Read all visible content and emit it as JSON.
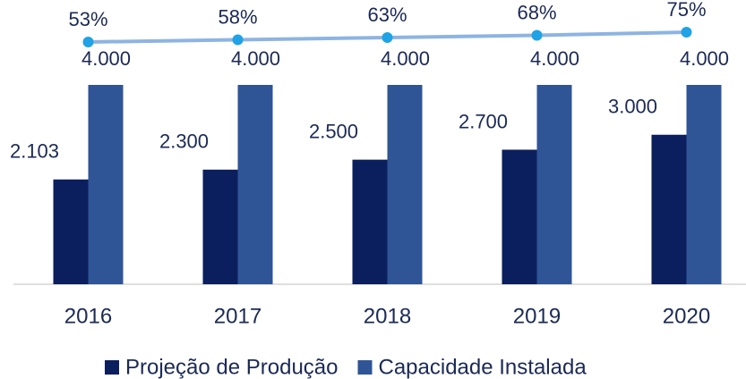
{
  "chart_data": {
    "type": "bar",
    "categories": [
      "2016",
      "2017",
      "2018",
      "2019",
      "2020"
    ],
    "series": [
      {
        "name": "Projeção de Produção",
        "color": "#0b1f5e",
        "values": [
          2103,
          2300,
          2500,
          2700,
          3000
        ],
        "value_labels": [
          "2.103",
          "2.300",
          "2.500",
          "2.700",
          "3.000"
        ]
      },
      {
        "name": "Capacidade Instalada",
        "color": "#2f5597",
        "values": [
          4000,
          4000,
          4000,
          4000,
          4000
        ],
        "value_labels": [
          "4.000",
          "4.000",
          "4.000",
          "4.000",
          "4.000"
        ]
      },
      {
        "type": "line",
        "axis": "y2",
        "color": "#8db4e2",
        "marker_color": "#1fa3e6",
        "values": [
          53,
          58,
          63,
          68,
          75
        ],
        "value_labels": [
          "53%",
          "58%",
          "63%",
          "68%",
          "75%"
        ]
      }
    ],
    "ylim": [
      0,
      4000
    ],
    "y2lim": [
      0,
      100
    ],
    "legend": "bottom"
  }
}
